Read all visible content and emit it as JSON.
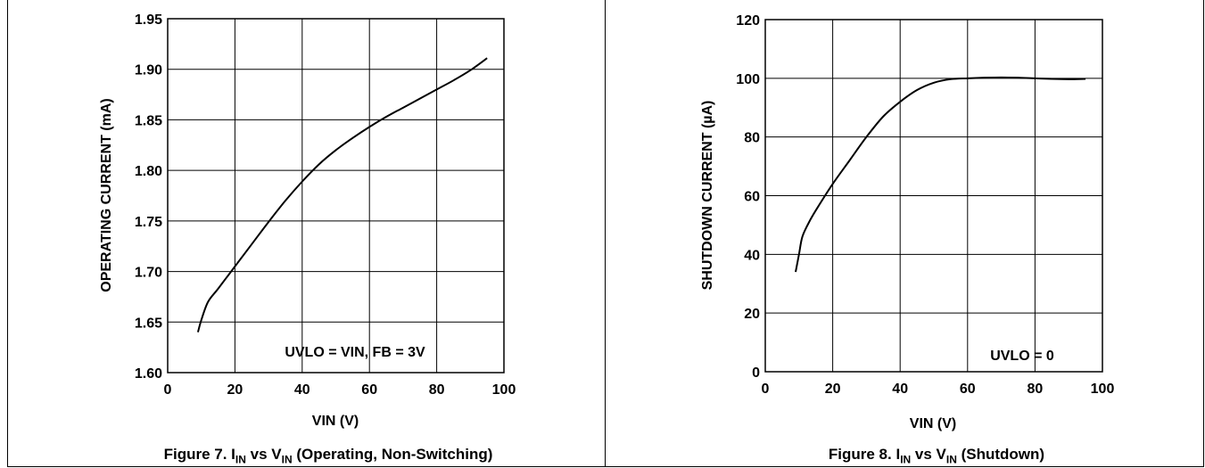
{
  "captions": {
    "fig7": {
      "prefix": "Figure 7. I",
      "sub1": "IN",
      "mid": " vs V",
      "sub2": "IN",
      "suffix": " (Operating, Non-Switching)"
    },
    "fig8": {
      "prefix": "Figure 8. I",
      "sub1": "IN",
      "mid": " vs V",
      "sub2": "IN",
      "suffix": " (Shutdown)"
    }
  },
  "chart_data": [
    {
      "type": "line",
      "xlabel": "VIN (V)",
      "ylabel": "OPERATING CURRENT (mA)",
      "xlim": [
        0,
        100
      ],
      "ylim": [
        1.6,
        1.95
      ],
      "xticks": [
        0,
        20,
        40,
        60,
        80,
        100
      ],
      "yticks": [
        1.6,
        1.65,
        1.7,
        1.75,
        1.8,
        1.85,
        1.9,
        1.95
      ],
      "ytick_labels": [
        "1.60",
        "1.65",
        "1.70",
        "1.75",
        "1.80",
        "1.85",
        "1.90",
        "1.95"
      ],
      "grid": true,
      "annotation": "UVLO = VIN, FB = 3V",
      "series": [
        {
          "x": [
            9,
            10,
            12,
            15,
            20,
            25,
            30,
            35,
            40,
            45,
            50,
            55,
            60,
            65,
            70,
            75,
            80,
            85,
            90,
            95
          ],
          "y": [
            1.64,
            1.652,
            1.67,
            1.683,
            1.705,
            1.727,
            1.749,
            1.77,
            1.789,
            1.806,
            1.82,
            1.832,
            1.843,
            1.853,
            1.862,
            1.871,
            1.88,
            1.889,
            1.899,
            1.911
          ]
        }
      ]
    },
    {
      "type": "line",
      "xlabel": "VIN (V)",
      "ylabel": "SHUTDOWN CURRENT (µA)",
      "xlim": [
        0,
        100
      ],
      "ylim": [
        0,
        120
      ],
      "xticks": [
        0,
        20,
        40,
        60,
        80,
        100
      ],
      "yticks": [
        0,
        20,
        40,
        60,
        80,
        100,
        120
      ],
      "ytick_labels": [
        "0",
        "20",
        "40",
        "60",
        "80",
        "100",
        "120"
      ],
      "grid": true,
      "annotation": "UVLO = 0",
      "series": [
        {
          "x": [
            9,
            10,
            11,
            13,
            15,
            20,
            25,
            30,
            35,
            40,
            45,
            50,
            55,
            60,
            65,
            70,
            75,
            80,
            85,
            90,
            95
          ],
          "y": [
            34,
            40,
            46,
            51,
            55,
            64,
            72,
            80,
            87,
            92,
            96,
            98.5,
            99.7,
            100,
            100.2,
            100.3,
            100.2,
            100,
            99.8,
            99.7,
            99.8
          ]
        }
      ]
    }
  ]
}
